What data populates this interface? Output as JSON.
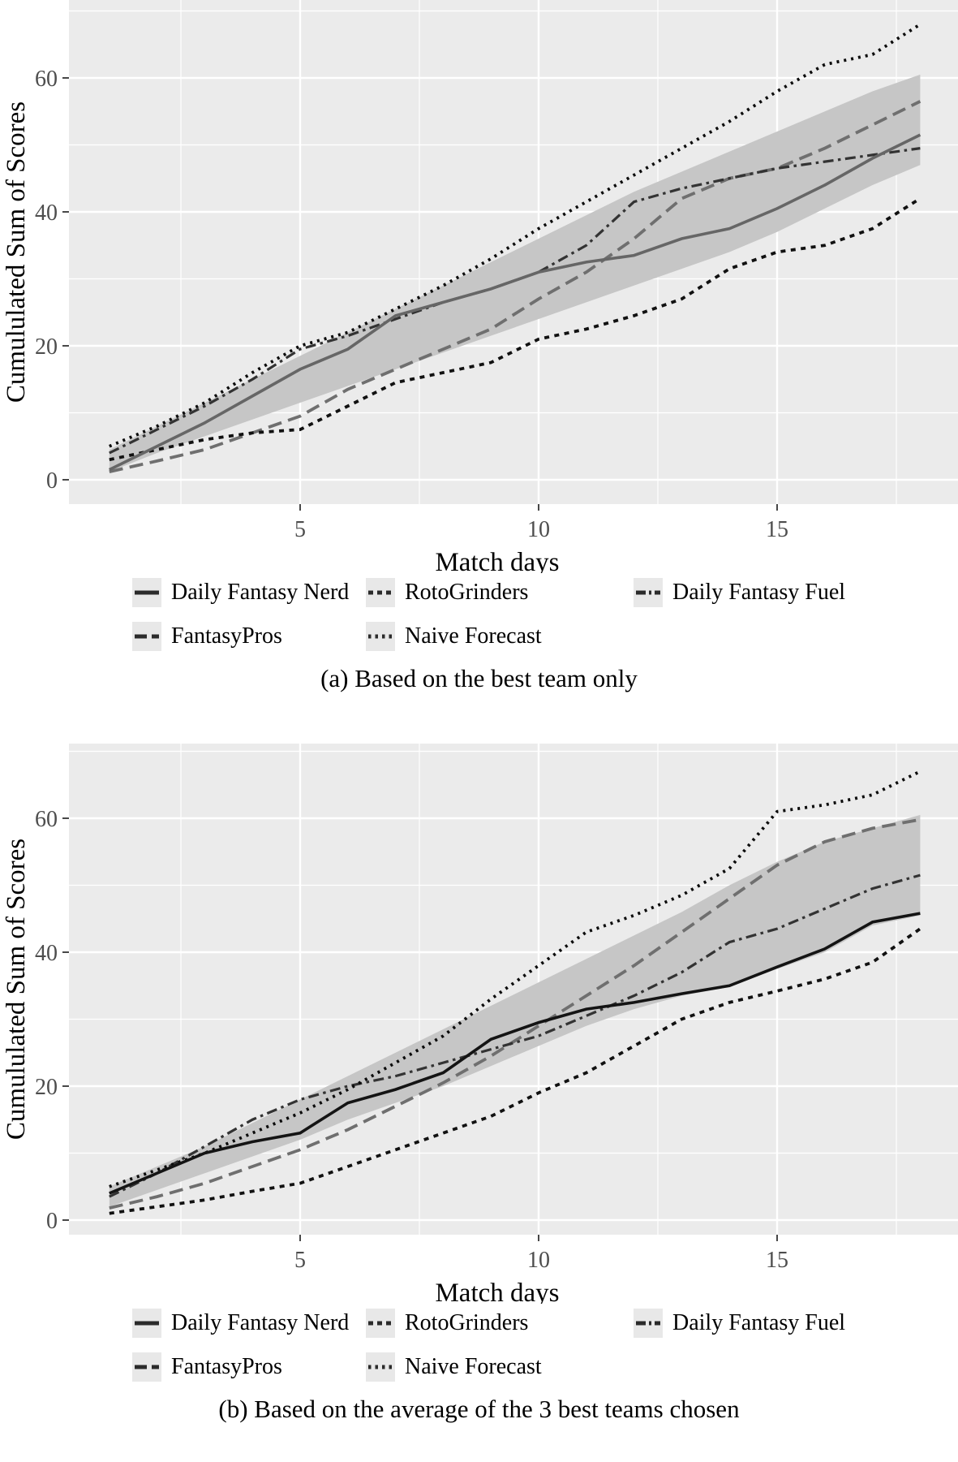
{
  "figure": {
    "ylabel": "Cumululated Sum of Scores",
    "xlabel": "Match days",
    "colors": {
      "panel_bg": "#ebebeb",
      "gridline": "#ffffff",
      "band_fill": "#c6c6c6",
      "tick_label": "#4d4d4d",
      "tick_mark": "#333333",
      "axis_title": "#000000",
      "legend_key_bg": "#e8e8e8",
      "legend_sample": "#2b2b2b"
    }
  },
  "legend": {
    "rows": [
      [
        {
          "label": "Daily Fantasy Nerd",
          "linetype": "solid"
        },
        {
          "label": "RotoGrinders",
          "linetype": "dashed"
        },
        {
          "label": "Daily Fantasy Fuel",
          "linetype": "dashdot"
        }
      ],
      [
        {
          "label": "FantasyPros",
          "linetype": "longdash"
        },
        {
          "label": "Naive Forecast",
          "linetype": "dotted"
        }
      ]
    ]
  },
  "captions": {
    "a": "(a) Based on the best team only",
    "b": "(b) Based on the average of the 3 best teams chosen"
  },
  "chart_data": [
    {
      "type": "line",
      "panel": "a",
      "caption": "(a) Based on the best team only",
      "xlabel": "Match days",
      "ylabel": "Cumululated Sum of Scores",
      "x_ticks": [
        5,
        10,
        15
      ],
      "x_minor_ticks": [
        2.5,
        7.5,
        12.5,
        17.5
      ],
      "y_ticks": [
        0,
        20,
        40,
        60
      ],
      "y_minor_ticks": [
        10,
        30,
        50,
        70
      ],
      "xlim": [
        0.15,
        18.85
      ],
      "ylim": [
        -3.6,
        71.6
      ],
      "grid": true,
      "legend_position": "bottom",
      "x": [
        1,
        2,
        3,
        4,
        5,
        6,
        7,
        8,
        9,
        10,
        11,
        12,
        13,
        14,
        15,
        16,
        17,
        18
      ],
      "band": {
        "lower": [
          1.2,
          4,
          6.5,
          9,
          11.5,
          14,
          16.5,
          19,
          21.5,
          24,
          26.5,
          29,
          31.5,
          34,
          37,
          40.5,
          44,
          47
        ],
        "upper": [
          4.5,
          8,
          11.5,
          15,
          18.5,
          22,
          25.5,
          29,
          32.5,
          36,
          39.5,
          43,
          46,
          49,
          52,
          55,
          58,
          60.5
        ]
      },
      "series": [
        {
          "name": "FantasyPros",
          "linetype": "longdash",
          "color": "#6f6f6f",
          "values": [
            1.2,
            2.8,
            4.5,
            7,
            9.5,
            13.5,
            16.5,
            19.5,
            22.5,
            27,
            31,
            36,
            42,
            45,
            46.5,
            49.5,
            53,
            56.5
          ]
        },
        {
          "name": "Daily Fantasy Fuel",
          "linetype": "dashdot",
          "color": "#333333",
          "values": [
            4,
            7.5,
            11,
            15,
            19.5,
            21.5,
            24,
            26.5,
            28.5,
            31,
            35,
            41.5,
            43.5,
            45,
            46.5,
            47.5,
            48.5,
            49.5
          ]
        },
        {
          "name": "RotoGrinders",
          "linetype": "dashed",
          "color": "#111111",
          "values": [
            3,
            4.5,
            6,
            7,
            7.5,
            11,
            14.5,
            16,
            17.5,
            21,
            22.5,
            24.5,
            27,
            31.5,
            34,
            35,
            37.5,
            42
          ]
        },
        {
          "name": "Naive Forecast",
          "linetype": "dotted",
          "color": "#0b0b0b",
          "values": [
            5,
            8,
            11.5,
            16,
            20,
            22,
            25.5,
            29,
            33,
            37.5,
            41.5,
            45.5,
            49.5,
            53.5,
            58,
            62,
            63.5,
            68
          ]
        },
        {
          "name": "Daily Fantasy Nerd",
          "linetype": "solid",
          "color": "#666666",
          "values": [
            1.5,
            5,
            8.5,
            12.5,
            16.5,
            19.5,
            24.5,
            26.5,
            28.5,
            31,
            32.5,
            33.5,
            36,
            37.5,
            40.5,
            44,
            48,
            51.5
          ]
        }
      ]
    },
    {
      "type": "line",
      "panel": "b",
      "caption": "(b) Based on the average of the 3 best teams chosen",
      "xlabel": "Match days",
      "ylabel": "Cumululated Sum of Scores",
      "x_ticks": [
        5,
        10,
        15
      ],
      "x_minor_ticks": [
        2.5,
        7.5,
        12.5,
        17.5
      ],
      "y_ticks": [
        0,
        20,
        40,
        60
      ],
      "y_minor_ticks": [
        10,
        30,
        50,
        70
      ],
      "xlim": [
        0.15,
        18.85
      ],
      "ylim": [
        -2.2,
        71.2
      ],
      "grid": true,
      "legend_position": "bottom",
      "x": [
        1,
        2,
        3,
        4,
        5,
        6,
        7,
        8,
        9,
        10,
        11,
        12,
        13,
        14,
        15,
        16,
        17,
        18
      ],
      "band": {
        "lower": [
          2,
          4.5,
          7,
          9.5,
          12,
          15,
          17.5,
          20,
          23,
          26,
          29,
          31.5,
          33.5,
          34.8,
          37.5,
          40,
          44,
          45.5
        ],
        "upper": [
          5,
          8,
          11,
          14.5,
          18,
          21.5,
          25,
          28.5,
          32,
          35.5,
          39,
          42.5,
          46,
          50,
          53.5,
          56.5,
          58.5,
          60.5
        ]
      },
      "series": [
        {
          "name": "FantasyPros",
          "linetype": "longdash",
          "color": "#6f6f6f",
          "values": [
            1.8,
            3.5,
            5.5,
            8,
            10.5,
            13.5,
            17,
            20.5,
            24.5,
            29,
            33.5,
            38,
            43,
            48,
            53,
            56.5,
            58.5,
            59.8
          ]
        },
        {
          "name": "Daily Fantasy Fuel",
          "linetype": "dashdot",
          "color": "#333333",
          "values": [
            3.5,
            7,
            11,
            15,
            18,
            20,
            21.5,
            23.5,
            25.5,
            27.5,
            30.5,
            33.5,
            37,
            41.5,
            43.5,
            46.5,
            49.5,
            51.5
          ]
        },
        {
          "name": "RotoGrinders",
          "linetype": "dashed",
          "color": "#111111",
          "values": [
            1,
            2,
            3,
            4.3,
            5.5,
            8,
            10.5,
            13,
            15.5,
            19,
            22,
            26,
            30,
            32.5,
            34.2,
            36,
            38.5,
            43.5
          ]
        },
        {
          "name": "Naive Forecast",
          "linetype": "dotted",
          "color": "#0b0b0b",
          "values": [
            5,
            7.5,
            10,
            13,
            16,
            19.5,
            23.5,
            27.5,
            33,
            38,
            43,
            45.5,
            48.5,
            52.5,
            61,
            62,
            63.5,
            67
          ]
        },
        {
          "name": "Daily Fantasy Nerd",
          "linetype": "solid",
          "color": "#141414",
          "values": [
            4,
            7,
            10,
            11.7,
            13,
            17.5,
            19.5,
            22,
            27,
            29.5,
            31.5,
            32.5,
            33.8,
            35,
            37.8,
            40.5,
            44.5,
            45.8
          ]
        }
      ]
    }
  ]
}
